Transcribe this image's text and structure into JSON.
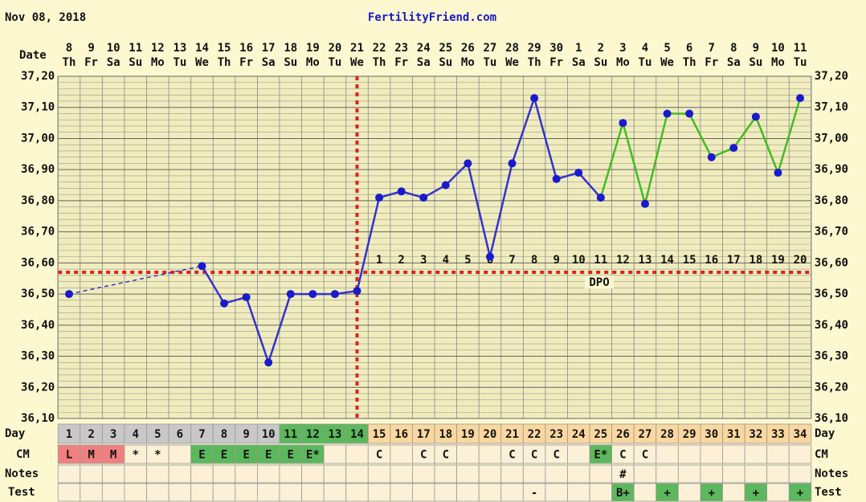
{
  "header": {
    "date": "Nov 08, 2018",
    "site": "FertilityFriend.com"
  },
  "chart_data": {
    "type": "line",
    "row_labels": {
      "date": "Date",
      "day": "Day",
      "cm": "CM",
      "notes": "Notes",
      "test": "Test"
    },
    "categories": [
      "8",
      "9",
      "10",
      "11",
      "12",
      "13",
      "14",
      "15",
      "16",
      "17",
      "18",
      "19",
      "20",
      "21",
      "22",
      "23",
      "24",
      "25",
      "26",
      "27",
      "28",
      "29",
      "30",
      "1",
      "2",
      "3",
      "4",
      "5",
      "6",
      "7",
      "8",
      "9",
      "10",
      "11"
    ],
    "weekdays": [
      "Th",
      "Fr",
      "Sa",
      "Su",
      "Mo",
      "Tu",
      "We",
      "Th",
      "Fr",
      "Sa",
      "Su",
      "Mo",
      "Tu",
      "We",
      "Th",
      "Fr",
      "Sa",
      "Su",
      "Mo",
      "Tu",
      "We",
      "Th",
      "Fr",
      "Sa",
      "Su",
      "Mo",
      "Tu",
      "We",
      "Th",
      "Fr",
      "Sa",
      "Su",
      "Mo",
      "Tu"
    ],
    "cycle_days": [
      1,
      2,
      3,
      4,
      5,
      6,
      7,
      8,
      9,
      10,
      11,
      12,
      13,
      14,
      15,
      16,
      17,
      18,
      19,
      20,
      21,
      22,
      23,
      24,
      25,
      26,
      27,
      28,
      29,
      30,
      31,
      32,
      33,
      34
    ],
    "day_colors": [
      "#c8c8c8",
      "#c8c8c8",
      "#c8c8c8",
      "#c8c8c8",
      "#c8c8c8",
      "#c8c8c8",
      "#c8c8c8",
      "#c8c8c8",
      "#c8c8c8",
      "#c8c8c8",
      "#5cb85c",
      "#5cb85c",
      "#5cb85c",
      "#5cb85c",
      "#fad7a0",
      "#fad7a0",
      "#fad7a0",
      "#fad7a0",
      "#fad7a0",
      "#fad7a0",
      "#fad7a0",
      "#fad7a0",
      "#fad7a0",
      "#fad7a0",
      "#fad7a0",
      "#fad7a0",
      "#fad7a0",
      "#fad7a0",
      "#fad7a0",
      "#fad7a0",
      "#fad7a0",
      "#fad7a0",
      "#fad7a0",
      "#fad7a0"
    ],
    "ylim": [
      36.1,
      37.2
    ],
    "yticks": [
      {
        "value": 36.1,
        "label": "36,10"
      },
      {
        "value": 36.2,
        "label": "36,20"
      },
      {
        "value": 36.3,
        "label": "36,30"
      },
      {
        "value": 36.4,
        "label": "36,40"
      },
      {
        "value": 36.5,
        "label": "36,50"
      },
      {
        "value": 36.6,
        "label": "36,60"
      },
      {
        "value": 36.7,
        "label": "36,70"
      },
      {
        "value": 36.8,
        "label": "36,80"
      },
      {
        "value": 36.9,
        "label": "36,90"
      },
      {
        "value": 37.0,
        "label": "37,00"
      },
      {
        "value": 37.1,
        "label": "37,10"
      },
      {
        "value": 37.2,
        "label": "37,20"
      }
    ],
    "grid": true,
    "marker_color": "#1a1acc",
    "series": [
      {
        "color": "#3333cc",
        "values": [
          36.5,
          null,
          null,
          null,
          null,
          null,
          36.59,
          36.47,
          36.49,
          36.28,
          36.5,
          36.5,
          36.5,
          36.51,
          36.81,
          36.83,
          36.81,
          36.85,
          36.92,
          36.62,
          36.92,
          37.13,
          36.87,
          36.89,
          36.81,
          null,
          null,
          null,
          null,
          null,
          null,
          null,
          null,
          null
        ]
      },
      {
        "color": "#44bb22",
        "values": [
          null,
          null,
          null,
          null,
          null,
          null,
          null,
          null,
          null,
          null,
          null,
          null,
          null,
          null,
          null,
          null,
          null,
          null,
          null,
          null,
          null,
          null,
          null,
          null,
          36.81,
          37.05,
          36.79,
          37.08,
          37.08,
          36.94,
          36.97,
          37.07,
          36.89,
          37.13
        ]
      }
    ],
    "coverline": 36.57,
    "ovulation_day": 14,
    "dpo": [
      null,
      null,
      null,
      null,
      null,
      null,
      null,
      null,
      null,
      null,
      null,
      null,
      null,
      null,
      1,
      2,
      3,
      4,
      5,
      6,
      7,
      8,
      9,
      10,
      11,
      12,
      13,
      14,
      15,
      16,
      17,
      18,
      19,
      20
    ],
    "dpo_label": "DPO",
    "cm": [
      "L",
      "M",
      "M",
      "*",
      "*",
      null,
      "E",
      "E",
      "E",
      "E",
      "E",
      "E*",
      null,
      null,
      "C",
      null,
      "C",
      "C",
      null,
      null,
      "C",
      "C",
      "C",
      null,
      "E*",
      "C",
      "C",
      null,
      null,
      null,
      null,
      null,
      null,
      null
    ],
    "cm_colors": [
      "#f08080",
      "#f08080",
      "#f08080",
      null,
      null,
      null,
      "#5cb85c",
      "#5cb85c",
      "#5cb85c",
      "#5cb85c",
      "#5cb85c",
      "#5cb85c",
      null,
      null,
      null,
      null,
      null,
      null,
      null,
      null,
      null,
      null,
      null,
      null,
      "#5cb85c",
      null,
      null,
      null,
      null,
      null,
      null,
      null,
      null,
      null
    ],
    "notes": [
      null,
      null,
      null,
      null,
      null,
      null,
      null,
      null,
      null,
      null,
      null,
      null,
      null,
      null,
      null,
      null,
      null,
      null,
      null,
      null,
      null,
      null,
      null,
      null,
      null,
      "#",
      null,
      null,
      null,
      null,
      null,
      null,
      null,
      null
    ],
    "test": [
      null,
      null,
      null,
      null,
      null,
      null,
      null,
      null,
      null,
      null,
      null,
      null,
      null,
      null,
      null,
      null,
      null,
      null,
      null,
      null,
      null,
      "-",
      null,
      null,
      null,
      "B+",
      null,
      "+",
      null,
      "+",
      null,
      "+",
      null,
      "+"
    ],
    "test_colors": [
      null,
      null,
      null,
      null,
      null,
      null,
      null,
      null,
      null,
      null,
      null,
      null,
      null,
      null,
      null,
      null,
      null,
      null,
      null,
      null,
      null,
      null,
      null,
      null,
      null,
      "#5cb85c",
      null,
      "#5cb85c",
      null,
      "#5cb85c",
      null,
      "#5cb85c",
      null,
      "#5cb85c"
    ]
  }
}
